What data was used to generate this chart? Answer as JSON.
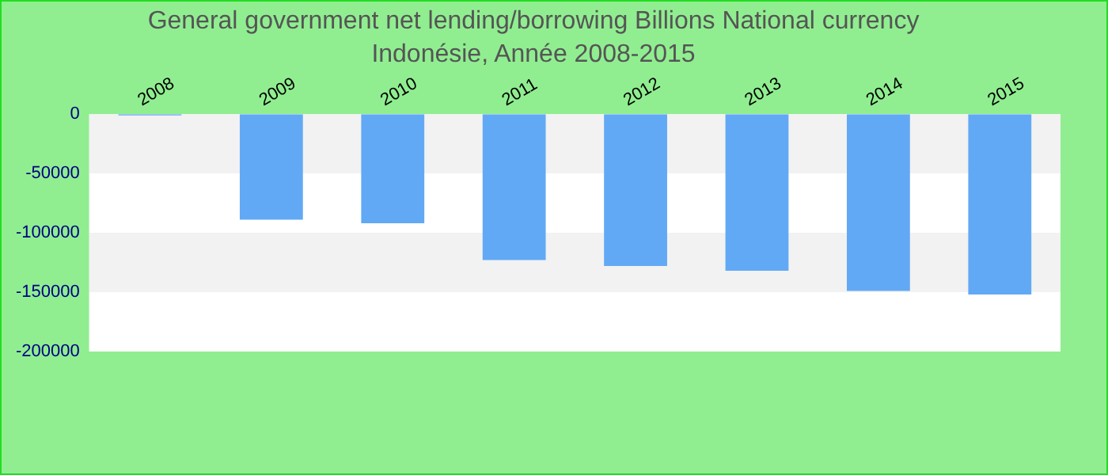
{
  "chart_data": {
    "type": "bar",
    "title": "General government net lending/borrowing Billions National currency",
    "subtitle": "Indonésie, Année 2008-2015",
    "categories": [
      "2008",
      "2009",
      "2010",
      "2011",
      "2012",
      "2013",
      "2014",
      "2015"
    ],
    "values": [
      -1000,
      -89000,
      -92000,
      -123000,
      -128000,
      -132000,
      -149000,
      -152000
    ],
    "color": "#62a9f5",
    "ylim": [
      -200000,
      0
    ],
    "yticks": [
      0,
      -50000,
      -100000,
      -150000,
      -200000
    ]
  }
}
